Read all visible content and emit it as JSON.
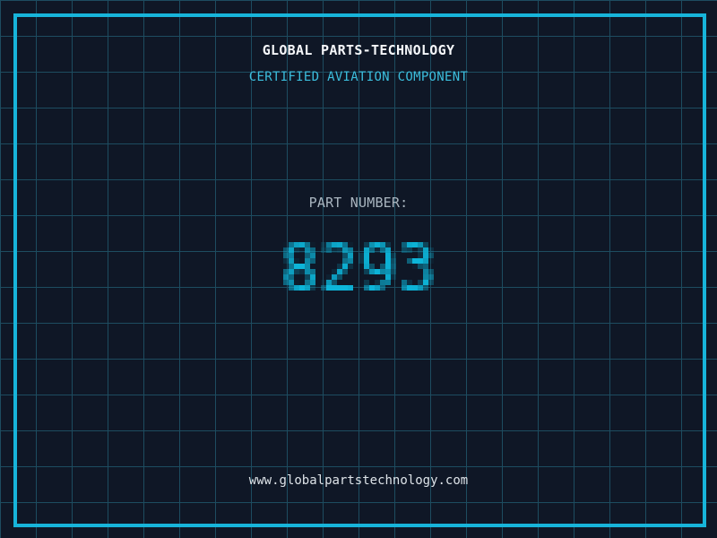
{
  "header": {
    "title": "GLOBAL PARTS-TECHNOLOGY",
    "subtitle": "CERTIFIED AVIATION COMPONENT"
  },
  "part": {
    "label": "PART NUMBER:",
    "number": "8293"
  },
  "footer": {
    "url": "www.globalpartstechnology.com"
  },
  "colors": {
    "background": "#0f1726",
    "grid_line": "#1d4c60",
    "frame_border": "#17b4da",
    "title_text": "#f5f7fa",
    "subtitle_text": "#3cbedd",
    "part_label_text": "#aab6c0",
    "part_number_text": "#0db5d9",
    "website_text": "#dde3e8"
  }
}
